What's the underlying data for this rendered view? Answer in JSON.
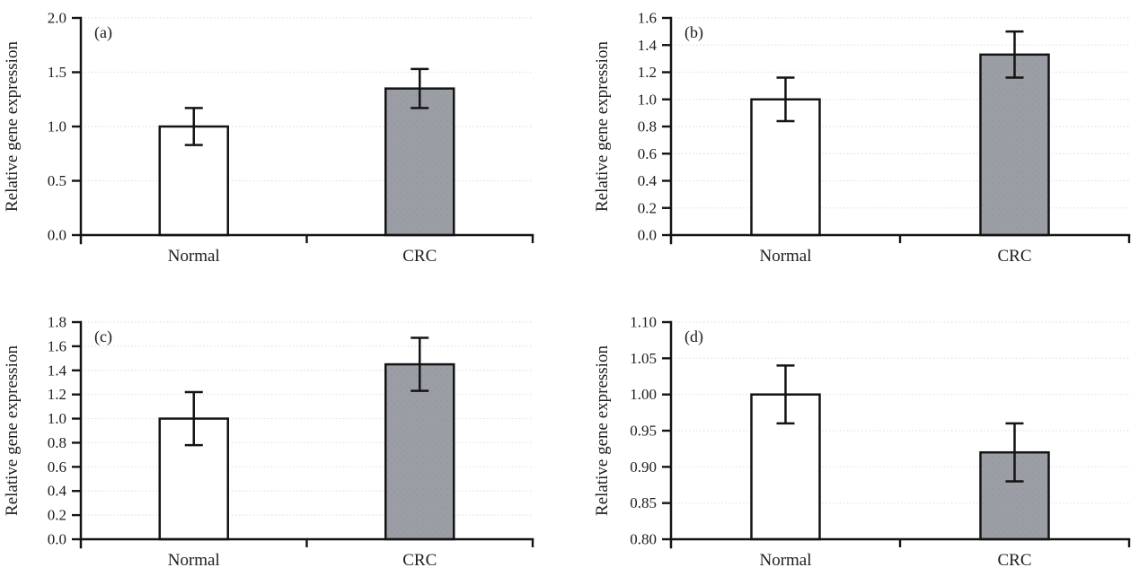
{
  "figure": {
    "background": "#ffffff",
    "ylabel": "Relative gene expression",
    "x_categories": [
      "Normal",
      "CRC"
    ],
    "colors": {
      "axis": "#141414",
      "text": "#1c1c1c",
      "gridline": "#e2e2e2",
      "normal_bar_fill": "#ffffff",
      "crc_bar_fill": "#9b9ea4",
      "crc_bar_dot": "#888da0",
      "bar_border": "#141414",
      "error_bar": "#141414"
    }
  },
  "chart_data": [
    {
      "type": "bar",
      "panel_label": "(a)",
      "categories": [
        "Normal",
        "CRC"
      ],
      "values": [
        1.0,
        1.35
      ],
      "error_bars": [
        0.17,
        0.18
      ],
      "ylabel": "Relative gene expression",
      "ylim": [
        0.0,
        2.0
      ],
      "ytick_step": 0.5,
      "ytick_decimals": 1,
      "grid": true,
      "legend": "none",
      "bar_styles": [
        "normal",
        "crc"
      ]
    },
    {
      "type": "bar",
      "panel_label": "(b)",
      "categories": [
        "Normal",
        "CRC"
      ],
      "values": [
        1.0,
        1.33
      ],
      "error_bars": [
        0.16,
        0.17
      ],
      "ylabel": "Relative gene expression",
      "ylim": [
        0.0,
        1.6
      ],
      "ytick_step": 0.2,
      "ytick_decimals": 1,
      "grid": true,
      "legend": "none",
      "bar_styles": [
        "normal",
        "crc"
      ]
    },
    {
      "type": "bar",
      "panel_label": "(c)",
      "categories": [
        "Normal",
        "CRC"
      ],
      "values": [
        1.0,
        1.45
      ],
      "error_bars": [
        0.22,
        0.22
      ],
      "ylabel": "Relative gene expression",
      "ylim": [
        0.0,
        1.8
      ],
      "ytick_step": 0.2,
      "ytick_decimals": 1,
      "grid": true,
      "legend": "none",
      "bar_styles": [
        "normal",
        "crc"
      ]
    },
    {
      "type": "bar",
      "panel_label": "(d)",
      "categories": [
        "Normal",
        "CRC"
      ],
      "values": [
        1.0,
        0.92
      ],
      "error_bars": [
        0.04,
        0.04
      ],
      "ylabel": "Relative gene expression",
      "ylim": [
        0.8,
        1.1
      ],
      "ytick_step": 0.05,
      "ytick_decimals": 2,
      "grid": true,
      "legend": "none",
      "bar_styles": [
        "normal",
        "crc"
      ]
    }
  ]
}
